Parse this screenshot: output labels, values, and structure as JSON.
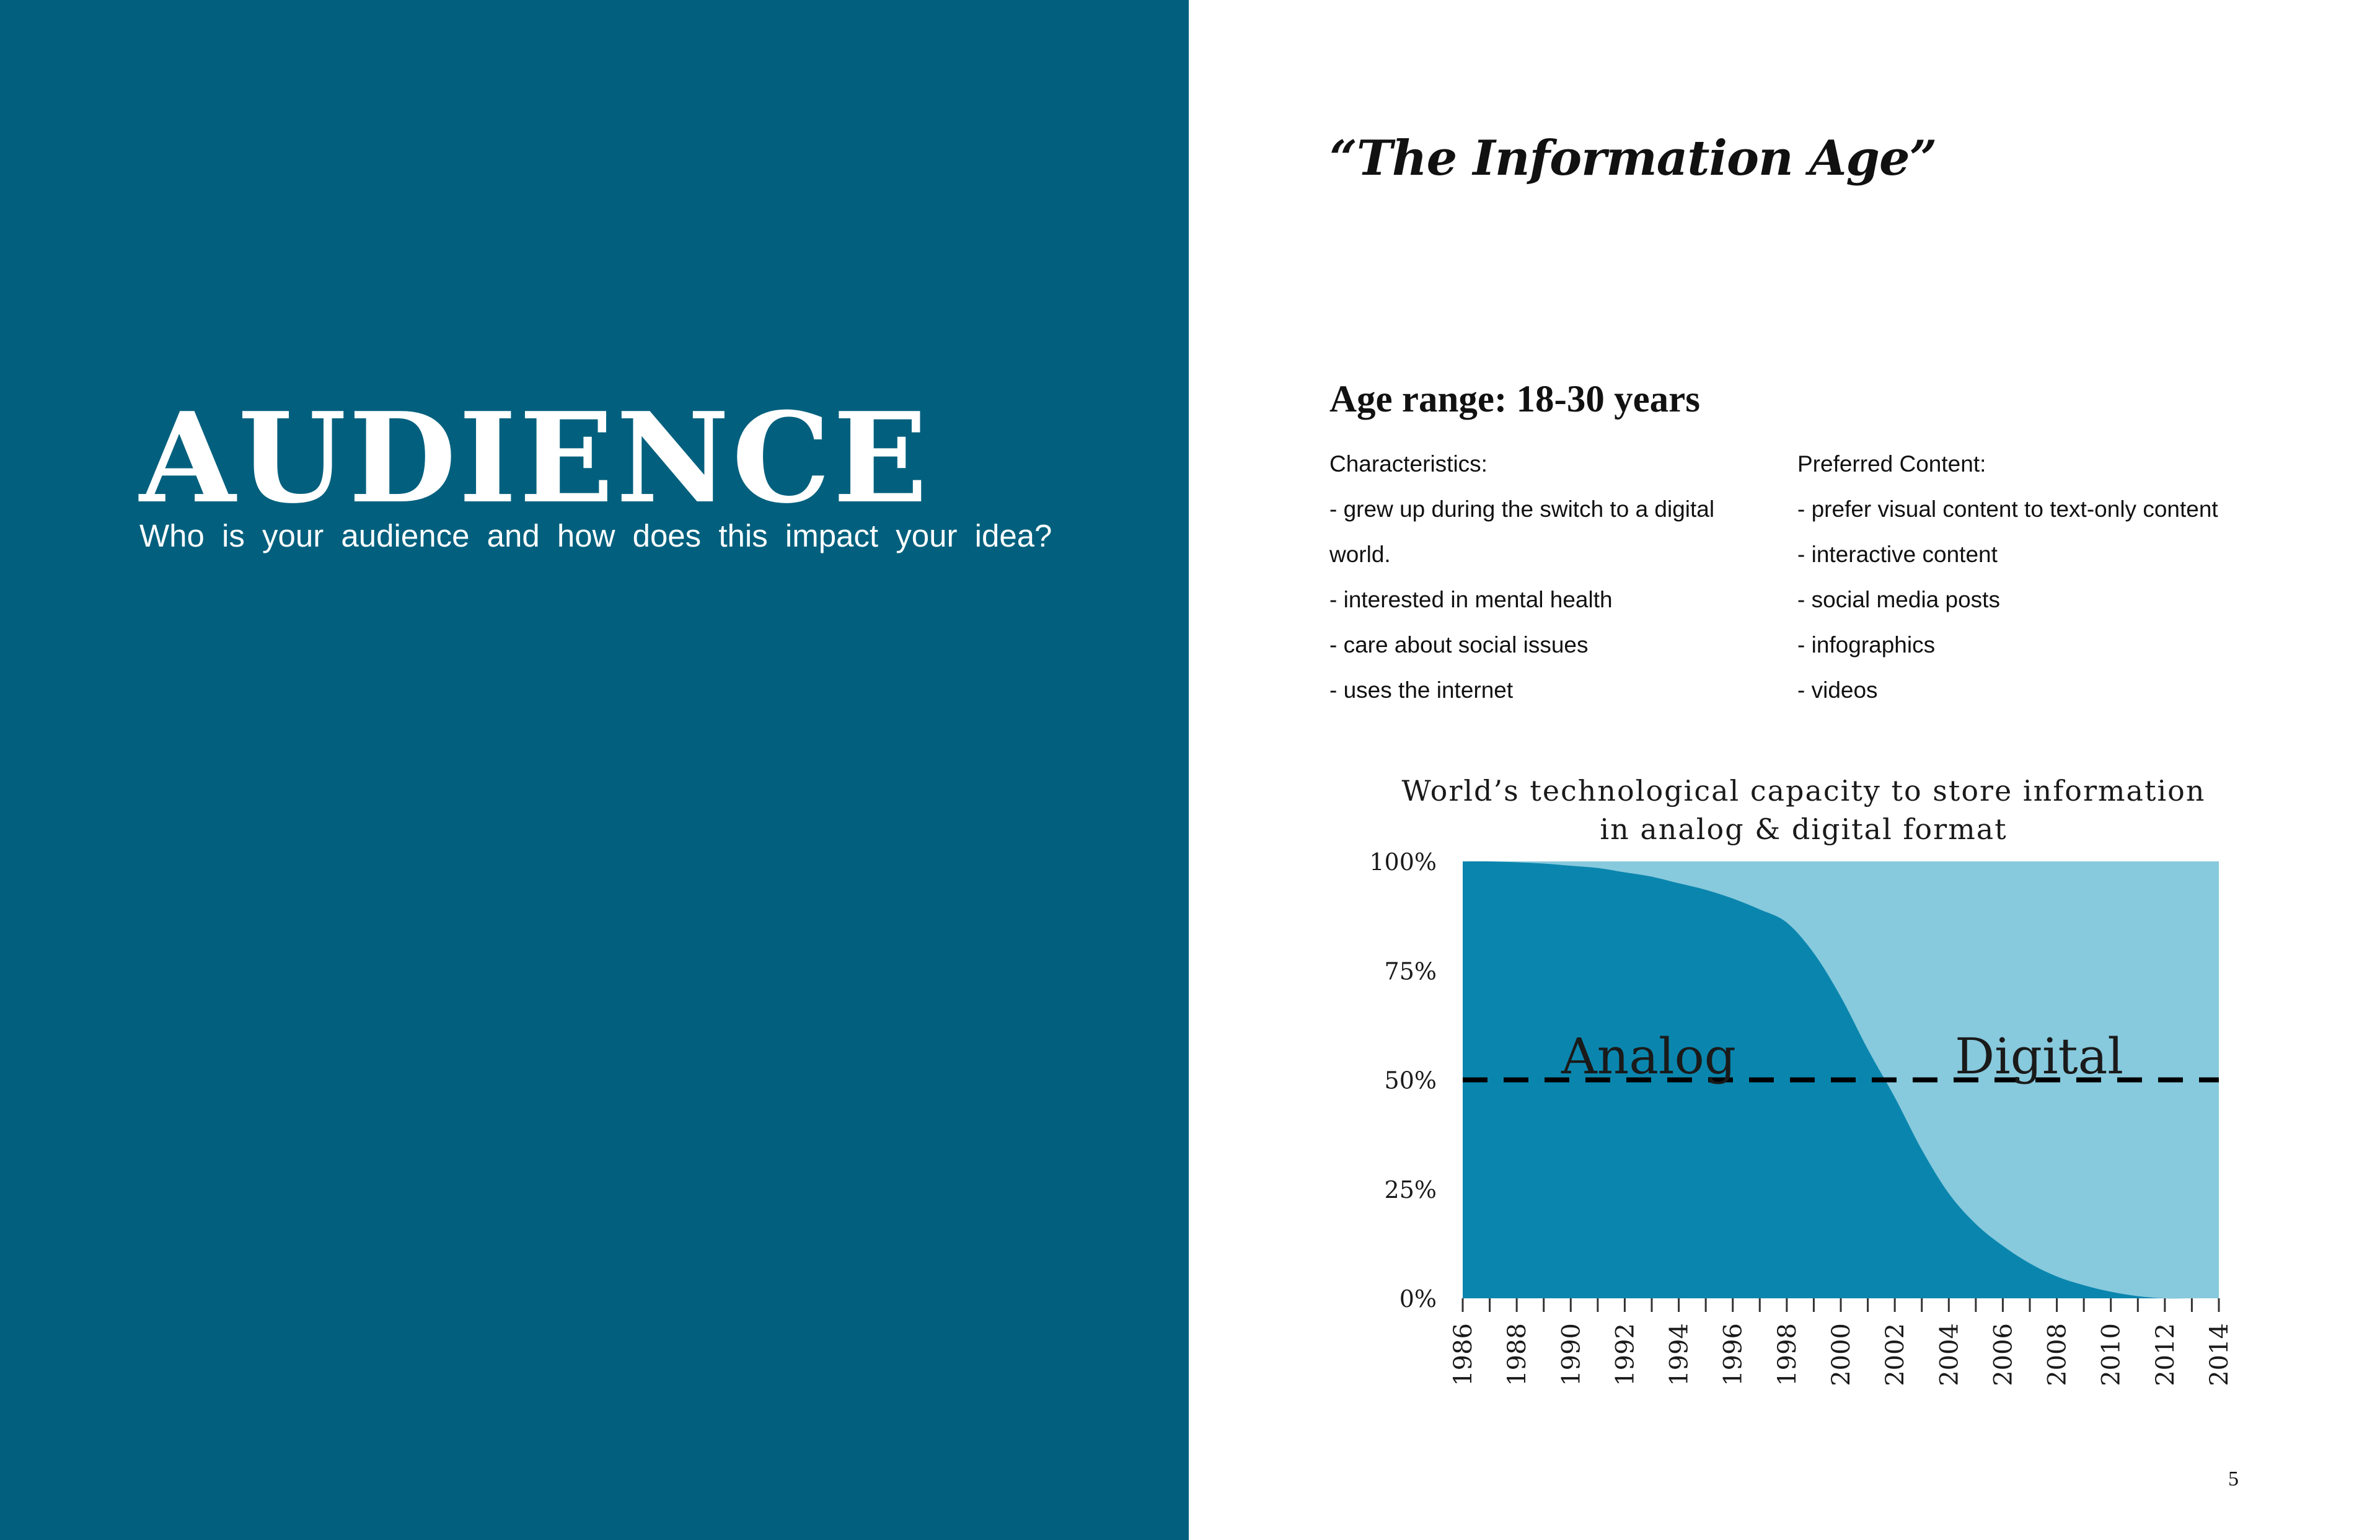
{
  "left": {
    "title": "AUDIENCE",
    "subtitle": "Who is your audience and how does this impact your idea?",
    "background": "#02607e"
  },
  "right": {
    "title": "“The Information Age”",
    "age_heading": "Age range: 18-30 years",
    "characteristics": {
      "heading": "Characteristics:",
      "lines": [
        "- grew up during the switch to a digital",
        "world.",
        "- interested in mental health",
        "- care about social issues",
        "- uses the internet"
      ]
    },
    "preferred": {
      "heading": "Preferred Content:",
      "lines": [
        "- prefer visual content to text-only content",
        "- interactive content",
        "- social media posts",
        "- infographics",
        "- videos"
      ]
    },
    "page_number": "5"
  },
  "chart_data": {
    "type": "area",
    "title": [
      "World’s technological capacity to store information",
      "in analog & digital format"
    ],
    "x": [
      1986,
      1987,
      1988,
      1989,
      1990,
      1991,
      1992,
      1993,
      1994,
      1995,
      1996,
      1997,
      1998,
      1999,
      2000,
      2001,
      2002,
      2003,
      2004,
      2005,
      2006,
      2007,
      2008,
      2009,
      2010,
      2011,
      2012,
      2013,
      2014
    ],
    "x_ticks": [
      "1986",
      "1988",
      "1990",
      "1992",
      "1994",
      "1996",
      "1998",
      "2000",
      "2002",
      "2004",
      "2006",
      "2008",
      "2010",
      "2012",
      "2014"
    ],
    "y_ticks": [
      "100%",
      "75%",
      "50%",
      "25%",
      "0%"
    ],
    "ylim": [
      0,
      100
    ],
    "series": [
      {
        "name": "Analog",
        "color": "#0a86ae",
        "values": [
          100,
          100,
          99.8,
          99.5,
          99,
          98.5,
          97.5,
          96.5,
          95,
          93.5,
          91.5,
          89,
          86,
          79,
          69,
          57,
          46,
          34,
          24,
          17,
          12,
          8,
          5,
          3,
          1.5,
          0.5,
          0,
          0,
          0
        ]
      },
      {
        "name": "Digital",
        "color": "#87c9dd",
        "values": [
          0,
          0,
          0.2,
          0.5,
          1,
          1.5,
          2.5,
          3.5,
          5,
          6.5,
          8.5,
          11,
          14,
          21,
          31,
          43,
          54,
          66,
          76,
          83,
          88,
          92,
          95,
          97,
          98.5,
          99.5,
          100,
          100,
          100
        ]
      }
    ],
    "reference_line": {
      "y": 50,
      "style": "dashed",
      "color": "#000000"
    },
    "series_labels": [
      "Analog",
      "Digital"
    ]
  }
}
